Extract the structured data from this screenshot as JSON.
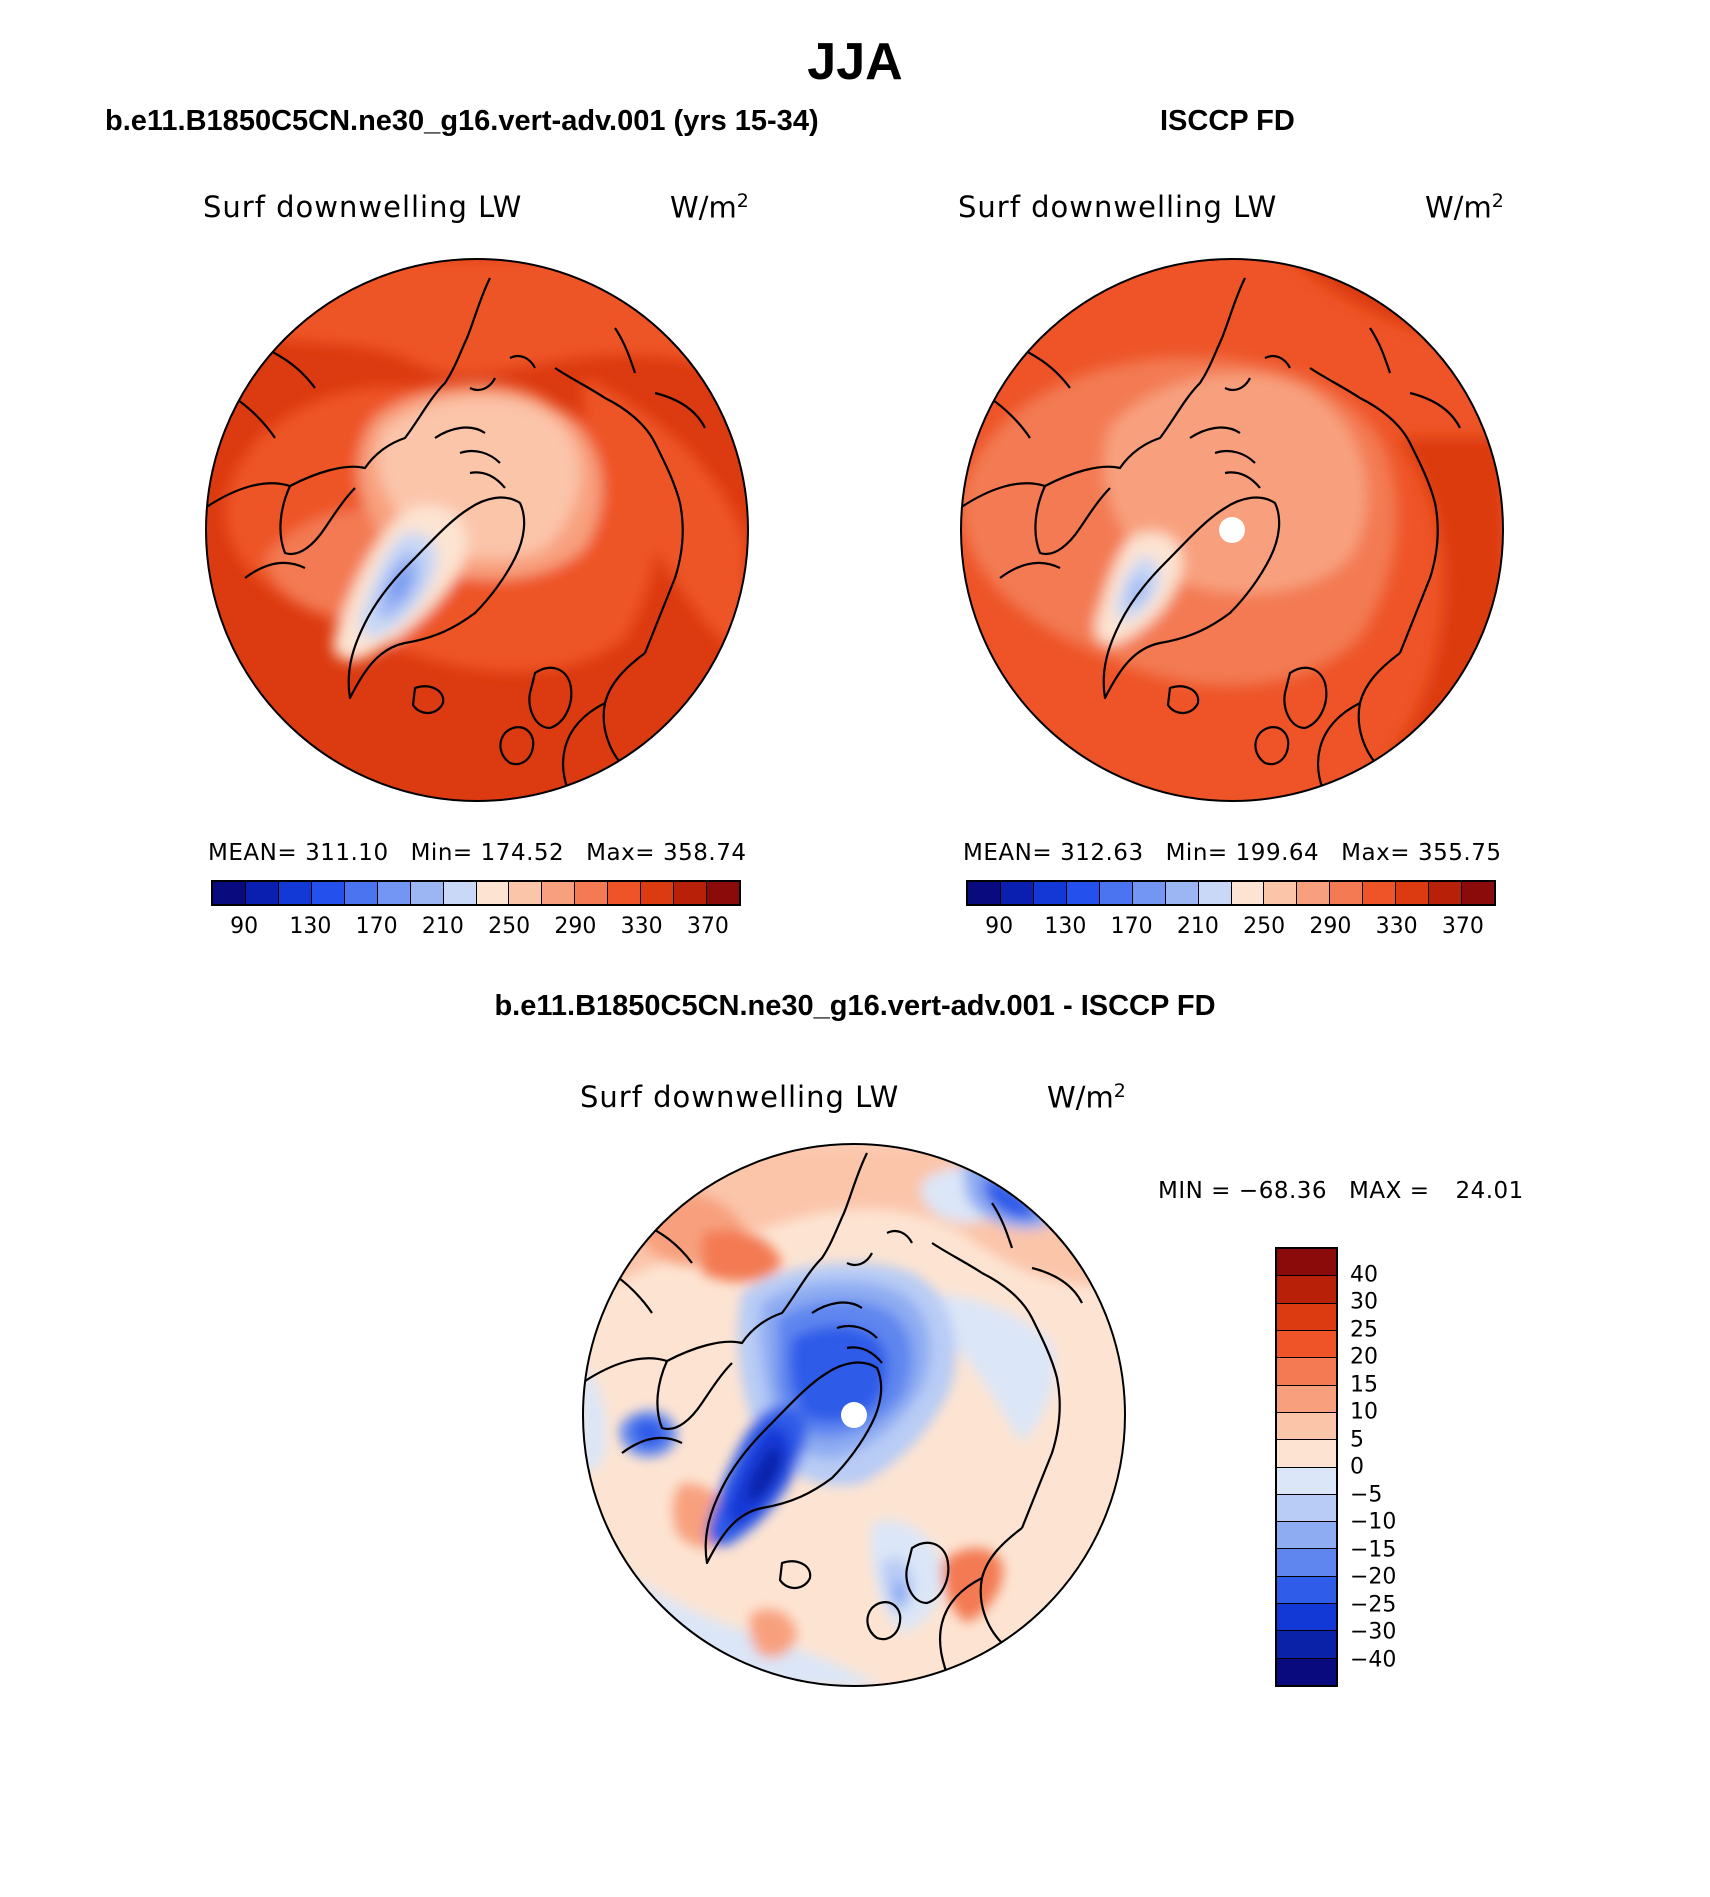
{
  "figure": {
    "title": "JJA"
  },
  "panels": {
    "model": {
      "title": "b.e11.B1850C5CN.ne30_g16.vert-adv.001 (yrs 15-34)",
      "variable": "Surf downwelling LW",
      "units_base": "W/m",
      "units_exp": "2",
      "mean_label": "MEAN=",
      "mean_value": "311.10",
      "min_label": "Min=",
      "min_value": "174.52",
      "max_label": "Max=",
      "max_value": "358.74"
    },
    "obs": {
      "title": "ISCCP FD",
      "variable": "Surf downwelling LW",
      "units_base": "W/m",
      "units_exp": "2",
      "mean_label": "MEAN=",
      "mean_value": "312.63",
      "min_label": "Min=",
      "min_value": "199.64",
      "max_label": "Max=",
      "max_value": "355.75"
    },
    "diff": {
      "title": "b.e11.B1850C5CN.ne30_g16.vert-adv.001 - ISCCP FD",
      "variable": "Surf downwelling LW",
      "units_base": "W/m",
      "units_exp": "2",
      "min_label": "MIN =",
      "min_value": "−68.36",
      "max_label": "MAX =",
      "max_value": "24.01"
    }
  },
  "colorbars": {
    "absolute": {
      "tick_labels": [
        "90",
        "130",
        "170",
        "210",
        "250",
        "290",
        "330",
        "370"
      ],
      "colors": [
        "#0a0a7f",
        "#0a1fb0",
        "#1238d6",
        "#2450ee",
        "#4a74f0",
        "#7296f2",
        "#9cb6f4",
        "#c8d8f6",
        "#fde4d2",
        "#fbc5aa",
        "#f8a07e",
        "#f37a52",
        "#ee5428",
        "#dc3a10",
        "#b82008",
        "#8b0a0a"
      ]
    },
    "difference": {
      "tick_labels": [
        "40",
        "30",
        "25",
        "20",
        "15",
        "10",
        "5",
        "0",
        "−5",
        "−10",
        "−15",
        "−20",
        "−25",
        "−30",
        "−40"
      ],
      "colors": [
        "#8b0a0a",
        "#b82008",
        "#dc3a10",
        "#ee5428",
        "#f37a52",
        "#f8a07e",
        "#fbc5aa",
        "#fde4d2",
        "#dbe6f8",
        "#b8ccf5",
        "#8eacf2",
        "#5f86ef",
        "#2f5ce8",
        "#1238d6",
        "#0a22a8",
        "#0a0a7f"
      ]
    }
  }
}
